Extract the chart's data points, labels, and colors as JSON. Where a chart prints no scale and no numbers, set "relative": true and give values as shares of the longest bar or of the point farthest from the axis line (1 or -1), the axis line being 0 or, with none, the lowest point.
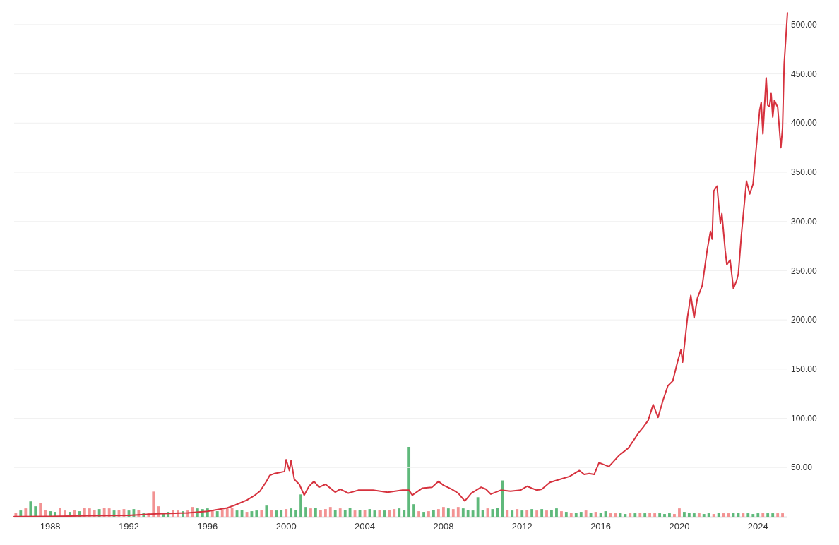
{
  "chart_data": [
    {
      "type": "line",
      "xlim": [
        "1986-03",
        "2025-07"
      ],
      "xticks": [
        {
          "value": "1988",
          "label": "1988"
        },
        {
          "value": "1992",
          "label": "1992"
        },
        {
          "value": "1996",
          "label": "1996"
        },
        {
          "value": "2000",
          "label": "2000"
        },
        {
          "value": "2004",
          "label": "2004"
        },
        {
          "value": "2008",
          "label": "2008"
        },
        {
          "value": "2012",
          "label": "2012"
        },
        {
          "value": "2016",
          "label": "2016"
        },
        {
          "value": "2020",
          "label": "2020"
        },
        {
          "value": "2024",
          "label": "2024"
        }
      ],
      "ylim": [
        0,
        525
      ],
      "yticks": [
        {
          "value": 50,
          "label": "50.00"
        },
        {
          "value": 100,
          "label": "100.00"
        },
        {
          "value": 150,
          "label": "150.00"
        },
        {
          "value": 200,
          "label": "200.00"
        },
        {
          "value": 250,
          "label": "250.00"
        },
        {
          "value": 300,
          "label": "300.00"
        },
        {
          "value": 350,
          "label": "350.00"
        },
        {
          "value": 400,
          "label": "400.00"
        },
        {
          "value": 450,
          "label": "450.00"
        },
        {
          "value": 500,
          "label": "500.00"
        }
      ],
      "grid": "y",
      "line_style": "solid",
      "series": [
        {
          "color": "#d6323e",
          "x": [
            "1986-03",
            "1988-01",
            "1990-01",
            "1992-01",
            "1993-06",
            "1995-01",
            "1996-01",
            "1996-06",
            "1997-01",
            "1997-06",
            "1998-01",
            "1998-06",
            "1998-09",
            "1999-01",
            "1999-03",
            "1999-06",
            "1999-09",
            "1999-12",
            "2000-01",
            "2000-03",
            "2000-04",
            "2000-06",
            "2000-09",
            "2000-12",
            "2001-03",
            "2001-06",
            "2001-09",
            "2002-01",
            "2002-07",
            "2002-10",
            "2003-03",
            "2003-09",
            "2004-06",
            "2005-03",
            "2005-12",
            "2006-04",
            "2006-06",
            "2006-12",
            "2007-06",
            "2007-10",
            "2008-01",
            "2008-06",
            "2008-10",
            "2009-02",
            "2009-06",
            "2009-12",
            "2010-03",
            "2010-06",
            "2010-12",
            "2011-06",
            "2011-12",
            "2012-04",
            "2012-10",
            "2013-01",
            "2013-06",
            "2013-12",
            "2014-06",
            "2014-12",
            "2015-03",
            "2015-06",
            "2015-09",
            "2015-12",
            "2016-03",
            "2016-06",
            "2016-12",
            "2017-06",
            "2017-12",
            "2018-03",
            "2018-06",
            "2018-09",
            "2018-12",
            "2019-03",
            "2019-06",
            "2019-09",
            "2019-12",
            "2020-02",
            "2020-03",
            "2020-06",
            "2020-08",
            "2020-10",
            "2020-12",
            "2021-03",
            "2021-06",
            "2021-08",
            "2021-09",
            "2021-10",
            "2021-12",
            "2022-02",
            "2022-03",
            "2022-05",
            "2022-06",
            "2022-08",
            "2022-10",
            "2022-12",
            "2023-01",
            "2023-03",
            "2023-06",
            "2023-08",
            "2023-10",
            "2023-12",
            "2024-02",
            "2024-03",
            "2024-04",
            "2024-06",
            "2024-07",
            "2024-08",
            "2024-09",
            "2024-10",
            "2024-11",
            "2025-01",
            "2025-03",
            "2025-04",
            "2025-05",
            "2025-07"
          ],
          "values": [
            0.1,
            0.3,
            1,
            1.5,
            3,
            4,
            5.5,
            7,
            9,
            12,
            17,
            22,
            26,
            36,
            42,
            44,
            45,
            46,
            58,
            47,
            57,
            38,
            33,
            22,
            31,
            36,
            30,
            33,
            25,
            28,
            24,
            27,
            27,
            25,
            27,
            27,
            22,
            29,
            30,
            36,
            32,
            28,
            24,
            16,
            24,
            30,
            28,
            23,
            27,
            26,
            27,
            31,
            27,
            28,
            35,
            38,
            41,
            47,
            43,
            44,
            43,
            55,
            53,
            51,
            62,
            70,
            85,
            91,
            98,
            114,
            101,
            118,
            133,
            138,
            158,
            170,
            157,
            203,
            225,
            202,
            222,
            235,
            271,
            290,
            282,
            331,
            336,
            298,
            308,
            271,
            256,
            261,
            232,
            240,
            247,
            288,
            341,
            328,
            338,
            376,
            413,
            421,
            389,
            446,
            418,
            417,
            430,
            406,
            423,
            416,
            375,
            395,
            460,
            512
          ]
        }
      ]
    },
    {
      "type": "bar",
      "relative": true,
      "xlim": [
        "1986-03",
        "2025-07"
      ],
      "x": [
        "1986-04",
        "1986-07",
        "1986-10",
        "1987-01",
        "1987-04",
        "1987-07",
        "1987-10",
        "1988-01",
        "1988-04",
        "1988-07",
        "1988-10",
        "1989-01",
        "1989-04",
        "1989-07",
        "1989-10",
        "1990-01",
        "1990-04",
        "1990-07",
        "1990-10",
        "1991-01",
        "1991-04",
        "1991-07",
        "1991-10",
        "1992-01",
        "1992-04",
        "1992-07",
        "1992-10",
        "1993-01",
        "1993-04",
        "1993-07",
        "1993-10",
        "1994-01",
        "1994-04",
        "1994-07",
        "1994-10",
        "1995-01",
        "1995-04",
        "1995-07",
        "1995-10",
        "1996-01",
        "1996-04",
        "1996-07",
        "1996-10",
        "1997-01",
        "1997-04",
        "1997-07",
        "1997-10",
        "1998-01",
        "1998-04",
        "1998-07",
        "1998-10",
        "1999-01",
        "1999-04",
        "1999-07",
        "1999-10",
        "2000-01",
        "2000-04",
        "2000-07",
        "2000-10",
        "2001-01",
        "2001-04",
        "2001-07",
        "2001-10",
        "2002-01",
        "2002-04",
        "2002-07",
        "2002-10",
        "2003-01",
        "2003-04",
        "2003-07",
        "2003-10",
        "2004-01",
        "2004-04",
        "2004-07",
        "2004-10",
        "2005-01",
        "2005-04",
        "2005-07",
        "2005-10",
        "2006-01",
        "2006-04",
        "2006-07",
        "2006-10",
        "2007-01",
        "2007-04",
        "2007-07",
        "2007-10",
        "2008-01",
        "2008-04",
        "2008-07",
        "2008-10",
        "2009-01",
        "2009-04",
        "2009-07",
        "2009-10",
        "2010-01",
        "2010-04",
        "2010-07",
        "2010-10",
        "2011-01",
        "2011-04",
        "2011-07",
        "2011-10",
        "2012-01",
        "2012-04",
        "2012-07",
        "2012-10",
        "2013-01",
        "2013-04",
        "2013-07",
        "2013-10",
        "2014-01",
        "2014-04",
        "2014-07",
        "2014-10",
        "2015-01",
        "2015-04",
        "2015-07",
        "2015-10",
        "2016-01",
        "2016-04",
        "2016-07",
        "2016-10",
        "2017-01",
        "2017-04",
        "2017-07",
        "2017-10",
        "2018-01",
        "2018-04",
        "2018-07",
        "2018-10",
        "2019-01",
        "2019-04",
        "2019-07",
        "2019-10",
        "2020-01",
        "2020-04",
        "2020-07",
        "2020-10",
        "2021-01",
        "2021-04",
        "2021-07",
        "2021-10",
        "2022-01",
        "2022-04",
        "2022-07",
        "2022-10",
        "2023-01",
        "2023-04",
        "2023-07",
        "2023-10",
        "2024-01",
        "2024-04",
        "2024-07",
        "2024-10",
        "2025-01",
        "2025-04"
      ],
      "values": [
        0.06,
        0.09,
        0.12,
        0.22,
        0.15,
        0.2,
        0.1,
        0.08,
        0.07,
        0.13,
        0.09,
        0.07,
        0.1,
        0.08,
        0.13,
        0.12,
        0.1,
        0.11,
        0.13,
        0.12,
        0.09,
        0.1,
        0.11,
        0.09,
        0.11,
        0.1,
        0.06,
        0.05,
        0.36,
        0.15,
        0.06,
        0.07,
        0.1,
        0.09,
        0.08,
        0.09,
        0.14,
        0.12,
        0.11,
        0.12,
        0.09,
        0.08,
        0.1,
        0.12,
        0.13,
        0.09,
        0.1,
        0.07,
        0.08,
        0.09,
        0.1,
        0.16,
        0.1,
        0.09,
        0.1,
        0.11,
        0.12,
        0.1,
        0.32,
        0.14,
        0.12,
        0.13,
        0.1,
        0.11,
        0.14,
        0.1,
        0.12,
        0.1,
        0.13,
        0.09,
        0.1,
        0.1,
        0.11,
        0.09,
        0.1,
        0.09,
        0.1,
        0.11,
        0.12,
        0.1,
        1.0,
        0.18,
        0.08,
        0.07,
        0.08,
        0.1,
        0.11,
        0.14,
        0.12,
        0.11,
        0.14,
        0.12,
        0.1,
        0.09,
        0.28,
        0.1,
        0.12,
        0.11,
        0.13,
        0.52,
        0.1,
        0.09,
        0.11,
        0.09,
        0.1,
        0.11,
        0.09,
        0.11,
        0.09,
        0.1,
        0.12,
        0.08,
        0.07,
        0.06,
        0.06,
        0.07,
        0.09,
        0.06,
        0.07,
        0.06,
        0.08,
        0.05,
        0.05,
        0.05,
        0.04,
        0.05,
        0.05,
        0.06,
        0.05,
        0.06,
        0.05,
        0.05,
        0.04,
        0.05,
        0.04,
        0.12,
        0.07,
        0.06,
        0.05,
        0.05,
        0.04,
        0.05,
        0.04,
        0.06,
        0.05,
        0.05,
        0.06,
        0.06,
        0.05,
        0.05,
        0.04,
        0.05,
        0.06,
        0.05,
        0.05,
        0.05,
        0.05
      ],
      "colors": [
        "#f29393",
        "#5fb97b",
        "#f29393",
        "#5fb97b",
        "#5fb97b",
        "#f29393",
        "#f29393",
        "#5fb97b",
        "#5fb97b",
        "#f29393",
        "#f29393",
        "#5fb97b",
        "#f29393",
        "#5fb97b",
        "#f29393",
        "#f29393",
        "#f29393",
        "#5fb97b",
        "#f29393",
        "#f29393",
        "#5fb97b",
        "#f29393",
        "#f29393",
        "#5fb97b",
        "#5fb97b",
        "#f29393",
        "#5fb97b",
        "#f29393",
        "#f29393",
        "#f29393",
        "#5fb97b",
        "#5fb97b",
        "#f29393",
        "#f29393",
        "#5fb97b",
        "#f29393",
        "#f29393",
        "#5fb97b",
        "#5fb97b",
        "#5fb97b",
        "#f29393",
        "#5fb97b",
        "#f29393",
        "#f29393",
        "#f29393",
        "#5fb97b",
        "#5fb97b",
        "#f29393",
        "#5fb97b",
        "#5fb97b",
        "#f29393",
        "#5fb97b",
        "#f29393",
        "#5fb97b",
        "#5fb97b",
        "#f29393",
        "#5fb97b",
        "#5fb97b",
        "#5fb97b",
        "#5fb97b",
        "#f29393",
        "#5fb97b",
        "#f29393",
        "#f29393",
        "#f29393",
        "#5fb97b",
        "#f29393",
        "#5fb97b",
        "#5fb97b",
        "#f29393",
        "#5fb97b",
        "#f29393",
        "#5fb97b",
        "#5fb97b",
        "#f29393",
        "#5fb97b",
        "#f29393",
        "#f29393",
        "#5fb97b",
        "#5fb97b",
        "#5fb97b",
        "#5fb97b",
        "#f29393",
        "#5fb97b",
        "#f29393",
        "#5fb97b",
        "#f29393",
        "#f29393",
        "#5fb97b",
        "#f29393",
        "#f29393",
        "#5fb97b",
        "#5fb97b",
        "#5fb97b",
        "#5fb97b",
        "#5fb97b",
        "#f29393",
        "#5fb97b",
        "#5fb97b",
        "#5fb97b",
        "#f29393",
        "#5fb97b",
        "#f29393",
        "#5fb97b",
        "#f29393",
        "#5fb97b",
        "#f29393",
        "#5fb97b",
        "#f29393",
        "#5fb97b",
        "#5fb97b",
        "#f29393",
        "#5fb97b",
        "#f29393",
        "#5fb97b",
        "#5fb97b",
        "#f29393",
        "#5fb97b",
        "#f29393",
        "#5fb97b",
        "#5fb97b",
        "#f29393",
        "#f29393",
        "#5fb97b",
        "#5fb97b",
        "#f29393",
        "#5fb97b",
        "#f29393",
        "#5fb97b",
        "#f29393",
        "#f29393",
        "#5fb97b",
        "#5fb97b",
        "#5fb97b",
        "#f29393",
        "#f29393",
        "#5fb97b",
        "#5fb97b",
        "#5fb97b",
        "#f29393",
        "#5fb97b",
        "#5fb97b",
        "#f29393",
        "#5fb97b",
        "#f29393",
        "#f29393",
        "#5fb97b",
        "#5fb97b",
        "#f29393",
        "#5fb97b",
        "#5fb97b",
        "#5fb97b",
        "#f29393",
        "#5fb97b",
        "#5fb97b",
        "#f29393",
        "#f29393"
      ]
    }
  ]
}
